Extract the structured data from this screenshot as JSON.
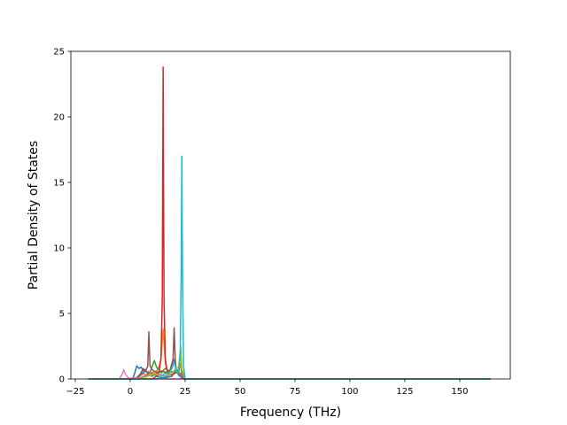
{
  "chart_data": {
    "type": "line",
    "title": "",
    "xlabel": "Frequency (THz)",
    "ylabel": "Partial Density of States",
    "xlim": [
      -27,
      173
    ],
    "ylim": [
      0,
      25
    ],
    "x_ticks": [
      -25,
      0,
      25,
      50,
      75,
      100,
      125,
      150
    ],
    "x_tick_labels": [
      "−25",
      "0",
      "25",
      "50",
      "75",
      "100",
      "125",
      "150"
    ],
    "y_ticks": [
      0,
      5,
      10,
      15,
      20,
      25
    ],
    "y_tick_labels": [
      "0",
      "5",
      "10",
      "15",
      "20",
      "25"
    ],
    "grid": false,
    "legend": "none",
    "x_range_of_data": [
      -19,
      164
    ],
    "series": [
      {
        "color": "#1f77b4",
        "points": [
          [
            -19,
            0
          ],
          [
            1,
            0
          ],
          [
            2,
            0.4
          ],
          [
            3,
            1.0
          ],
          [
            4,
            0.8
          ],
          [
            5,
            0.9
          ],
          [
            6,
            0.6
          ],
          [
            7,
            0.7
          ],
          [
            8,
            0.4
          ],
          [
            9,
            0.5
          ],
          [
            10,
            0.3
          ],
          [
            11,
            0.4
          ],
          [
            12,
            0.2
          ],
          [
            13,
            0.2
          ],
          [
            14,
            0.1
          ],
          [
            16,
            0.1
          ],
          [
            19,
            0.2
          ],
          [
            20,
            0.5
          ],
          [
            21,
            0.7
          ],
          [
            22,
            0.3
          ],
          [
            24,
            0
          ],
          [
            164,
            0
          ]
        ]
      },
      {
        "color": "#ff7f0e",
        "points": [
          [
            -19,
            0
          ],
          [
            2,
            0
          ],
          [
            4,
            0.2
          ],
          [
            6,
            0.4
          ],
          [
            8,
            0.3
          ],
          [
            10,
            0.5
          ],
          [
            12,
            0.6
          ],
          [
            13,
            0.9
          ],
          [
            14,
            1.5
          ],
          [
            15,
            3.8
          ],
          [
            16,
            1.2
          ],
          [
            17,
            0.5
          ],
          [
            19,
            0.3
          ],
          [
            21,
            0.6
          ],
          [
            22,
            0.4
          ],
          [
            23,
            1.2
          ],
          [
            23.5,
            0.3
          ],
          [
            25,
            0
          ],
          [
            164,
            0
          ]
        ]
      },
      {
        "color": "#2ca02c",
        "points": [
          [
            -19,
            0
          ],
          [
            2,
            0
          ],
          [
            5,
            0.4
          ],
          [
            7,
            0.6
          ],
          [
            9,
            0.5
          ],
          [
            11,
            1.4
          ],
          [
            12,
            0.9
          ],
          [
            13,
            0.7
          ],
          [
            14,
            0.5
          ],
          [
            16,
            0.8
          ],
          [
            18,
            0.6
          ],
          [
            20,
            0.5
          ],
          [
            22,
            0.7
          ],
          [
            23,
            2.0
          ],
          [
            23.5,
            0.6
          ],
          [
            25,
            0
          ],
          [
            164,
            0
          ]
        ]
      },
      {
        "color": "#d62728",
        "points": [
          [
            -19,
            0
          ],
          [
            10,
            0
          ],
          [
            12,
            0.2
          ],
          [
            13,
            0.4
          ],
          [
            14,
            1.5
          ],
          [
            14.6,
            6.0
          ],
          [
            15,
            23.8
          ],
          [
            15.4,
            6.0
          ],
          [
            16,
            1.5
          ],
          [
            17,
            0.4
          ],
          [
            19,
            0.3
          ],
          [
            21,
            0.5
          ],
          [
            23,
            0.3
          ],
          [
            25,
            0
          ],
          [
            164,
            0
          ]
        ]
      },
      {
        "color": "#9467bd",
        "points": [
          [
            -19,
            0
          ],
          [
            3,
            0
          ],
          [
            5,
            0.3
          ],
          [
            7,
            0.6
          ],
          [
            9,
            0.5
          ],
          [
            11,
            0.4
          ],
          [
            13,
            0.5
          ],
          [
            15,
            0.6
          ],
          [
            17,
            0.4
          ],
          [
            19,
            0.9
          ],
          [
            20,
            1.5
          ],
          [
            21,
            0.6
          ],
          [
            22,
            0.4
          ],
          [
            24,
            0
          ],
          [
            164,
            0
          ]
        ]
      },
      {
        "color": "#8c564b",
        "points": [
          [
            -19,
            0
          ],
          [
            3,
            0
          ],
          [
            5,
            0.5
          ],
          [
            6,
            0.8
          ],
          [
            7,
            0.6
          ],
          [
            8,
            1.0
          ],
          [
            8.5,
            3.6
          ],
          [
            9,
            1.0
          ],
          [
            10,
            0.7
          ],
          [
            12,
            0.5
          ],
          [
            14,
            0.6
          ],
          [
            16,
            0.5
          ],
          [
            18,
            0.6
          ],
          [
            19.5,
            1.5
          ],
          [
            20,
            3.9
          ],
          [
            20.5,
            1.5
          ],
          [
            21,
            0.6
          ],
          [
            23,
            0.4
          ],
          [
            25,
            0
          ],
          [
            164,
            0
          ]
        ]
      },
      {
        "color": "#e377c2",
        "points": [
          [
            -19,
            0
          ],
          [
            -5,
            0
          ],
          [
            -3.5,
            0.4
          ],
          [
            -3,
            0.7
          ],
          [
            -2,
            0.3
          ],
          [
            -1,
            0.1
          ],
          [
            0,
            0.05
          ],
          [
            2,
            0.1
          ],
          [
            4,
            0.05
          ],
          [
            6,
            0
          ],
          [
            164,
            0
          ]
        ]
      },
      {
        "color": "#7f7f7f",
        "points": [
          [
            -19,
            0
          ],
          [
            4,
            0
          ],
          [
            6,
            0.2
          ],
          [
            8,
            0.3
          ],
          [
            10,
            0.2
          ],
          [
            12,
            0.4
          ],
          [
            14,
            0.3
          ],
          [
            16,
            0.2
          ],
          [
            18,
            0.3
          ],
          [
            20,
            0.6
          ],
          [
            22,
            0.5
          ],
          [
            24,
            0.2
          ],
          [
            25,
            0
          ],
          [
            164,
            0
          ]
        ]
      },
      {
        "color": "#bcbd22",
        "points": [
          [
            -19,
            0
          ],
          [
            5,
            0
          ],
          [
            8,
            0.2
          ],
          [
            11,
            0.4
          ],
          [
            13,
            0.3
          ],
          [
            15,
            0.5
          ],
          [
            17,
            0.3
          ],
          [
            19,
            0.4
          ],
          [
            21,
            0.9
          ],
          [
            22,
            0.8
          ],
          [
            23,
            2.5
          ],
          [
            23.5,
            0.8
          ],
          [
            25,
            0
          ],
          [
            164,
            0
          ]
        ]
      },
      {
        "color": "#17becf",
        "points": [
          [
            -19,
            0
          ],
          [
            12,
            0
          ],
          [
            14,
            0.2
          ],
          [
            16,
            0.4
          ],
          [
            18,
            0.5
          ],
          [
            19,
            0.8
          ],
          [
            20,
            1.3
          ],
          [
            20.5,
            1.0
          ],
          [
            21,
            0.6
          ],
          [
            22,
            0.4
          ],
          [
            22.8,
            2.0
          ],
          [
            23.2,
            8.0
          ],
          [
            23.5,
            17.0
          ],
          [
            23.8,
            8.0
          ],
          [
            24.3,
            1.0
          ],
          [
            25,
            0
          ],
          [
            164,
            0
          ]
        ]
      }
    ]
  }
}
